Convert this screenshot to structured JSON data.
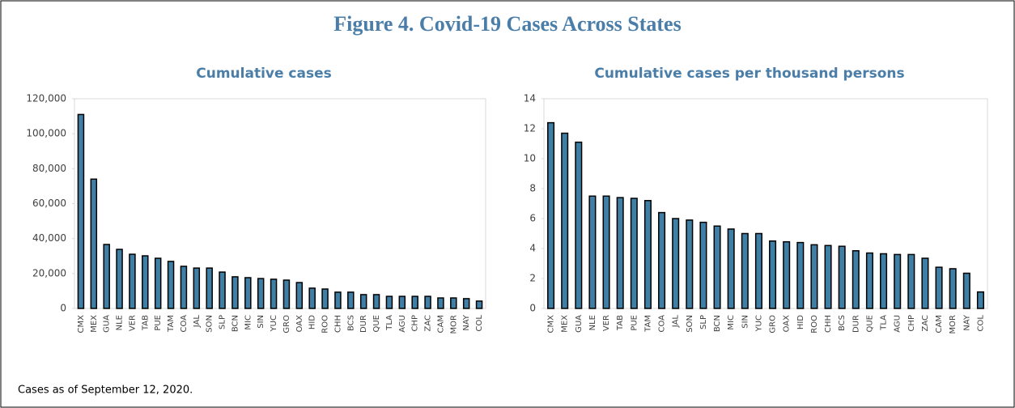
{
  "title": "Figure 4. Covid-19 Cases Across States",
  "footnote": "Cases as of September 12, 2020.",
  "chart_data": [
    {
      "type": "bar",
      "title": "Cumulative cases",
      "color": "#3f7fa6",
      "grid": false,
      "categories": [
        "CMX",
        "MEX",
        "GUA",
        "NLE",
        "VER",
        "TAB",
        "PUE",
        "TAM",
        "COA",
        "JAL",
        "SON",
        "SLP",
        "BCN",
        "MIC",
        "SIN",
        "YUC",
        "GRO",
        "OAX",
        "HID",
        "ROO",
        "CHH",
        "BCS",
        "DUR",
        "QUE",
        "TLA",
        "AGU",
        "CHP",
        "ZAC",
        "CAM",
        "MOR",
        "NAY",
        "COL"
      ],
      "values": [
        111000,
        74000,
        36600,
        33800,
        31000,
        30100,
        28700,
        26900,
        24100,
        23100,
        23100,
        20800,
        18100,
        17600,
        17100,
        16700,
        16200,
        14800,
        11600,
        11100,
        9300,
        9300,
        7900,
        7900,
        6900,
        6900,
        6900,
        6900,
        6000,
        6000,
        5600,
        4200
      ],
      "ylim": [
        0,
        120000
      ],
      "yticks": [
        0,
        {
          "value": 20000,
          "label": "20,000"
        },
        {
          "value": 40000,
          "label": "40,000"
        },
        {
          "value": 60000,
          "label": "60,000"
        },
        {
          "value": 80000,
          "label": "80,000"
        },
        {
          "value": 100000,
          "label": "100,000"
        },
        {
          "value": 120000,
          "label": "120,000"
        }
      ]
    },
    {
      "type": "bar",
      "title": "Cumulative cases per thousand persons",
      "color": "#3f7fa6",
      "grid": false,
      "categories": [
        "CMX",
        "MEX",
        "GUA",
        "NLE",
        "VER",
        "TAB",
        "PUE",
        "TAM",
        "COA",
        "JAL",
        "SON",
        "SLP",
        "BCN",
        "MIC",
        "SIN",
        "YUC",
        "GRO",
        "OAX",
        "HID",
        "ROO",
        "CHH",
        "BCS",
        "DUR",
        "QUE",
        "TLA",
        "AGU",
        "CHP",
        "ZAC",
        "CAM",
        "MOR",
        "NAY",
        "COL"
      ],
      "values": [
        12.4,
        11.7,
        11.1,
        7.5,
        7.5,
        7.4,
        7.35,
        7.2,
        6.4,
        6.0,
        5.9,
        5.75,
        5.5,
        5.3,
        5.0,
        5.0,
        4.5,
        4.45,
        4.4,
        4.25,
        4.2,
        4.15,
        3.85,
        3.7,
        3.65,
        3.6,
        3.6,
        3.35,
        2.75,
        2.65,
        2.35,
        1.1
      ],
      "ylim": [
        0,
        14
      ],
      "yticks": [
        0,
        2,
        4,
        6,
        8,
        10,
        12,
        14
      ]
    }
  ]
}
